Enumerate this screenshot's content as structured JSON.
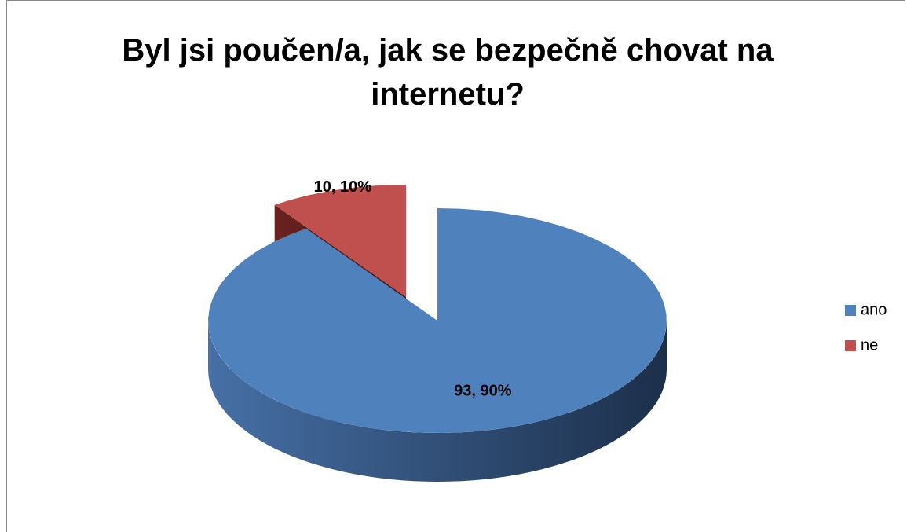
{
  "chart_data": {
    "type": "pie",
    "title": "Byl jsi poučen/a, jak se bezpečně chovat na internetu?",
    "categories": [
      "ano",
      "ne"
    ],
    "values": [
      93,
      10
    ],
    "value_labels": [
      "93, 90%",
      "10, 10%"
    ],
    "colors": [
      "#4f81bd",
      "#c0504d"
    ],
    "legend": "right"
  }
}
